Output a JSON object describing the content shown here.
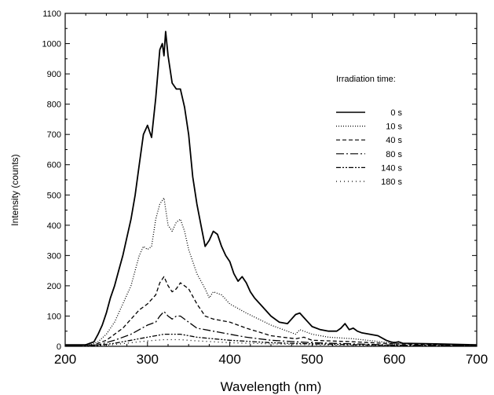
{
  "chart_data": {
    "type": "line",
    "title": "",
    "xlabel": "Wavelength  (nm)",
    "ylabel": "Intensity (counts)",
    "xlim": [
      200,
      700
    ],
    "ylim": [
      0,
      1100
    ],
    "x_ticks": [
      "200",
      "300",
      "400",
      "500",
      "600",
      "700"
    ],
    "y_ticks": [
      "0",
      "100",
      "200",
      "300",
      "400",
      "500",
      "600",
      "700",
      "800",
      "900",
      "1000",
      "1100"
    ],
    "legend_title": "Irradiation time:",
    "legend_position": "top-right",
    "grid": false,
    "series": [
      {
        "name": "0 s",
        "dash": "solid",
        "x": [
          200,
          225,
          235,
          240,
          245,
          250,
          255,
          260,
          265,
          270,
          275,
          280,
          285,
          290,
          295,
          300,
          305,
          310,
          315,
          318,
          320,
          322,
          325,
          330,
          335,
          340,
          345,
          350,
          355,
          360,
          365,
          370,
          375,
          380,
          385,
          390,
          395,
          400,
          405,
          410,
          415,
          420,
          425,
          430,
          440,
          450,
          460,
          470,
          475,
          480,
          485,
          490,
          495,
          500,
          510,
          520,
          530,
          535,
          540,
          545,
          550,
          555,
          560,
          570,
          580,
          590,
          595,
          600,
          605,
          610,
          650,
          700
        ],
        "y": [
          5,
          5,
          15,
          40,
          70,
          110,
          160,
          200,
          250,
          300,
          360,
          420,
          500,
          600,
          700,
          730,
          690,
          820,
          980,
          1000,
          960,
          1040,
          960,
          870,
          850,
          850,
          790,
          700,
          560,
          470,
          400,
          330,
          350,
          380,
          370,
          330,
          300,
          280,
          240,
          215,
          230,
          210,
          180,
          160,
          130,
          100,
          80,
          75,
          90,
          105,
          110,
          95,
          80,
          65,
          55,
          50,
          50,
          60,
          75,
          55,
          60,
          50,
          45,
          40,
          35,
          20,
          15,
          12,
          15,
          10,
          8,
          5
        ]
      },
      {
        "name": "10 s",
        "dash": "1,2",
        "x": [
          200,
          230,
          240,
          250,
          260,
          270,
          280,
          290,
          295,
          300,
          305,
          310,
          315,
          320,
          325,
          330,
          335,
          340,
          345,
          350,
          360,
          370,
          375,
          380,
          390,
          400,
          420,
          450,
          480,
          485,
          490,
          500,
          520,
          550,
          600,
          700
        ],
        "y": [
          3,
          5,
          15,
          40,
          80,
          140,
          200,
          300,
          330,
          320,
          330,
          420,
          470,
          490,
          400,
          380,
          410,
          420,
          380,
          320,
          240,
          190,
          160,
          180,
          170,
          140,
          110,
          70,
          40,
          55,
          50,
          40,
          30,
          25,
          10,
          3
        ]
      },
      {
        "name": "40 s",
        "dash": "5,3",
        "x": [
          200,
          235,
          250,
          270,
          290,
          300,
          310,
          315,
          320,
          325,
          330,
          335,
          340,
          350,
          360,
          370,
          380,
          400,
          420,
          450,
          480,
          490,
          500,
          550,
          600,
          700
        ],
        "y": [
          2,
          5,
          20,
          60,
          120,
          140,
          170,
          210,
          230,
          200,
          180,
          190,
          210,
          190,
          140,
          100,
          90,
          80,
          60,
          35,
          25,
          30,
          20,
          15,
          8,
          2
        ]
      },
      {
        "name": "80 s",
        "dash": "10,3,2,3",
        "x": [
          200,
          240,
          260,
          280,
          300,
          310,
          315,
          320,
          325,
          330,
          335,
          340,
          350,
          360,
          380,
          400,
          420,
          450,
          480,
          500,
          550,
          600,
          700
        ],
        "y": [
          2,
          5,
          20,
          40,
          70,
          80,
          100,
          115,
          100,
          90,
          100,
          100,
          80,
          60,
          50,
          40,
          30,
          20,
          15,
          12,
          8,
          4,
          2
        ]
      },
      {
        "name": "140 s",
        "dash": "6,2,2,2,2,2",
        "x": [
          200,
          240,
          260,
          280,
          300,
          320,
          340,
          360,
          380,
          400,
          450,
          500,
          600,
          700
        ],
        "y": [
          1,
          3,
          10,
          20,
          30,
          40,
          40,
          30,
          25,
          20,
          12,
          8,
          3,
          1
        ]
      },
      {
        "name": "180 s",
        "dash": "1,4",
        "x": [
          200,
          240,
          260,
          280,
          300,
          320,
          340,
          360,
          380,
          400,
          450,
          500,
          600,
          700
        ],
        "y": [
          1,
          2,
          6,
          12,
          18,
          22,
          22,
          18,
          15,
          12,
          8,
          5,
          2,
          1
        ]
      }
    ]
  }
}
